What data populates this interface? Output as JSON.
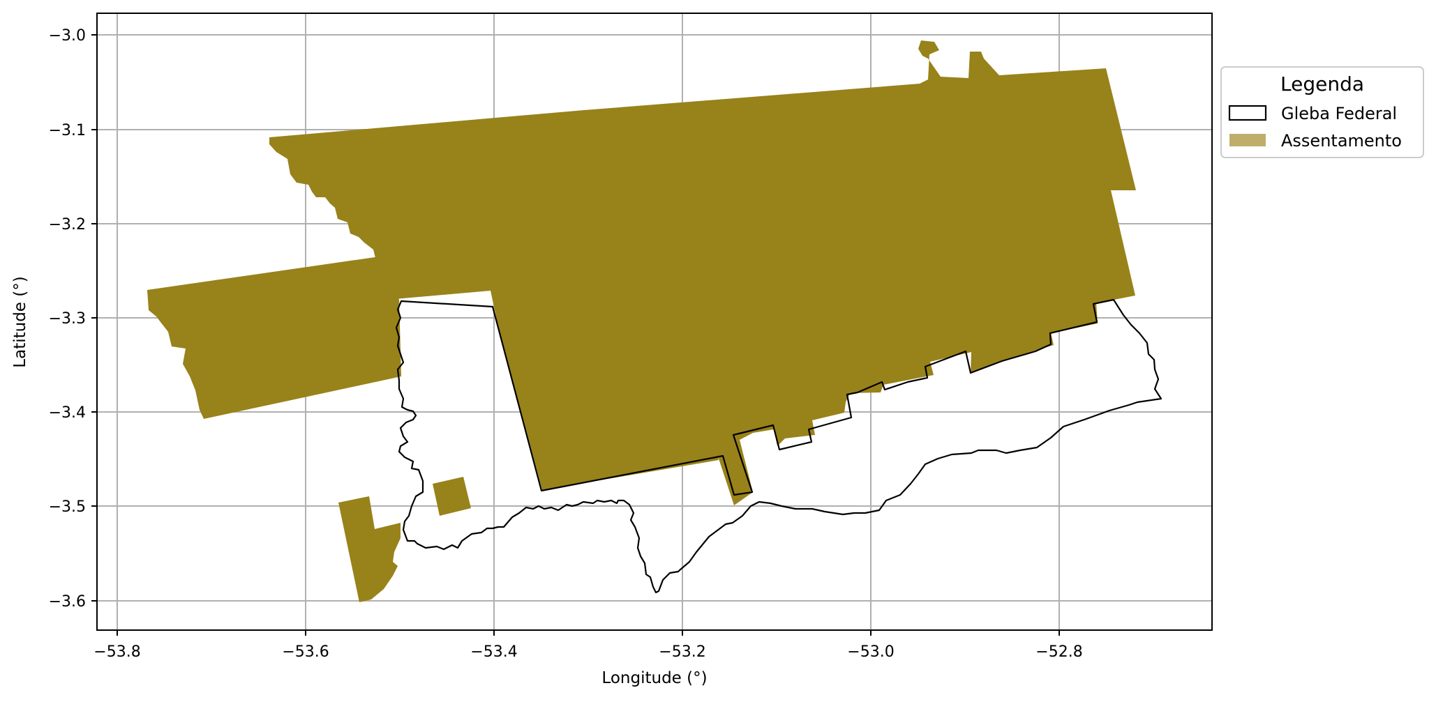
{
  "map": {
    "xlabel": "Longitude (°)",
    "ylabel": "Latitude (°)",
    "x_ticks": [
      "−53.8",
      "−53.6",
      "−53.4",
      "−53.2",
      "−53.0",
      "−52.8"
    ],
    "y_ticks": [
      "−3.0",
      "−3.1",
      "−3.2",
      "−3.3",
      "−3.4",
      "−3.5",
      "−3.6"
    ],
    "grid": true,
    "legend": {
      "title": "Legenda",
      "placement": "outside-right-top",
      "items": [
        {
          "label": "Gleba Federal",
          "style": "outline",
          "color": "#000000"
        },
        {
          "label": "Assentamento",
          "style": "fill",
          "color": "#bfae6b"
        }
      ]
    },
    "colors": {
      "assentamento_fill": "#98821a",
      "gleba_outline": "#000000",
      "grid": "#b0b0b0"
    }
  }
}
